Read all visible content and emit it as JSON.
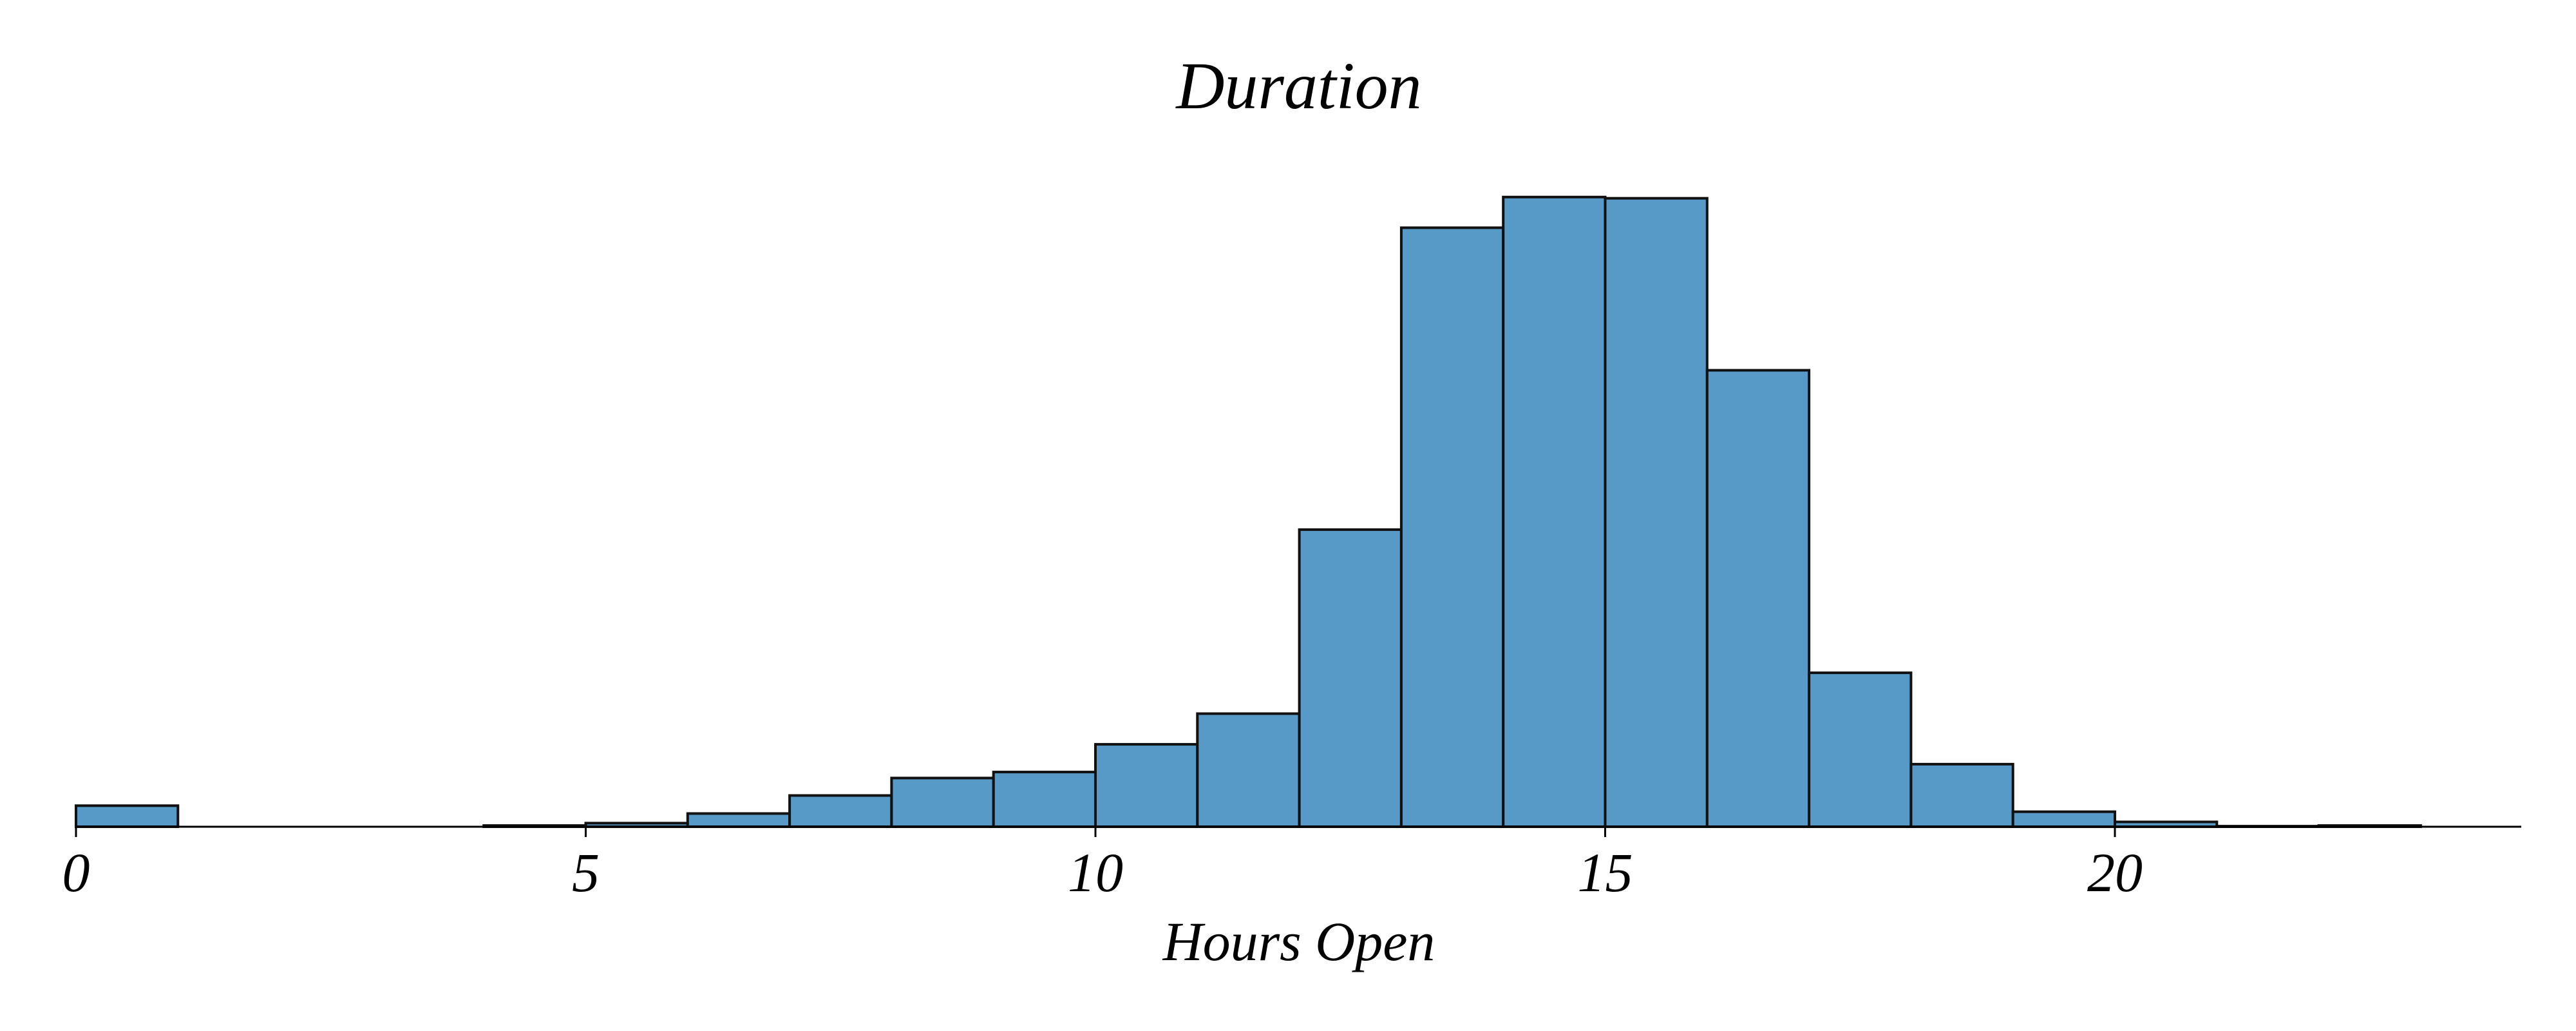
{
  "chart_data": {
    "type": "bar",
    "title": "Duration",
    "xlabel": "Hours Open",
    "ylabel": "",
    "xlim": [
      0,
      24
    ],
    "ylim": [
      0,
      1000
    ],
    "x_ticks": [
      0,
      5,
      10,
      15,
      20
    ],
    "y_axis_visible": false,
    "grid": false,
    "legend": "none",
    "bin_width": 1,
    "bins": [
      {
        "start": 0,
        "end": 1,
        "value": 35
      },
      {
        "start": 1,
        "end": 2,
        "value": 0
      },
      {
        "start": 2,
        "end": 3,
        "value": 0
      },
      {
        "start": 3,
        "end": 4,
        "value": 0
      },
      {
        "start": 4,
        "end": 5,
        "value": 2
      },
      {
        "start": 5,
        "end": 6,
        "value": 6
      },
      {
        "start": 6,
        "end": 7,
        "value": 22
      },
      {
        "start": 7,
        "end": 8,
        "value": 52
      },
      {
        "start": 8,
        "end": 9,
        "value": 81
      },
      {
        "start": 9,
        "end": 10,
        "value": 91
      },
      {
        "start": 10,
        "end": 11,
        "value": 137
      },
      {
        "start": 11,
        "end": 12,
        "value": 188
      },
      {
        "start": 12,
        "end": 13,
        "value": 494
      },
      {
        "start": 13,
        "end": 14,
        "value": 996
      },
      {
        "start": 14,
        "end": 15,
        "value": 1047
      },
      {
        "start": 15,
        "end": 16,
        "value": 1045
      },
      {
        "start": 16,
        "end": 17,
        "value": 759
      },
      {
        "start": 17,
        "end": 18,
        "value": 256
      },
      {
        "start": 18,
        "end": 19,
        "value": 104
      },
      {
        "start": 19,
        "end": 20,
        "value": 25
      },
      {
        "start": 20,
        "end": 21,
        "value": 8
      },
      {
        "start": 21,
        "end": 22,
        "value": 1
      },
      {
        "start": 22,
        "end": 23,
        "value": 2
      }
    ],
    "colors": {
      "bar_fill": "#5799c7",
      "bar_edge": "#111111",
      "axis": "#000000"
    }
  }
}
